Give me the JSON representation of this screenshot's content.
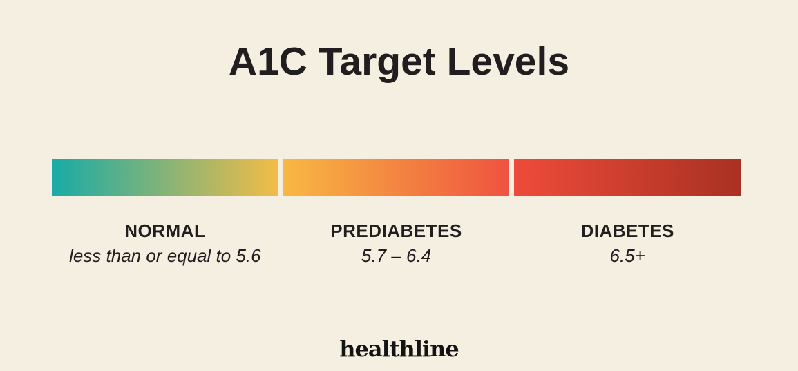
{
  "title": "A1C Target Levels",
  "colors": {
    "background": "#F4EFE1",
    "text": "#221E1F",
    "normal_gradient_start": "#18ABA7",
    "normal_gradient_end": "#F3BC47",
    "prediabetes_gradient_start": "#F8B843",
    "prediabetes_gradient_end": "#EF5340",
    "diabetes_gradient_start": "#EE4B3A",
    "diabetes_gradient_end": "#A93122"
  },
  "chart_data": {
    "type": "bar",
    "title": "A1C Target Levels",
    "layout": "horizontal three-segment color scale with category labels and value ranges below",
    "categories": [
      "NORMAL",
      "PREDIABETES",
      "DIABETES"
    ],
    "segments": [
      {
        "label": "NORMAL",
        "range_text": "less than or equal to 5.6",
        "a1c_max": 5.6,
        "gradient": [
          "#18ABA7",
          "#F3BC47"
        ]
      },
      {
        "label": "PREDIABETES",
        "range_text": "5.7 – 6.4",
        "a1c_min": 5.7,
        "a1c_max": 6.4,
        "gradient": [
          "#F8B843",
          "#EF5340"
        ]
      },
      {
        "label": "DIABETES",
        "range_text": "6.5+",
        "a1c_min": 6.5,
        "gradient": [
          "#EE4B3A",
          "#A93122"
        ]
      }
    ]
  },
  "footer": {
    "brand": "healthline"
  }
}
